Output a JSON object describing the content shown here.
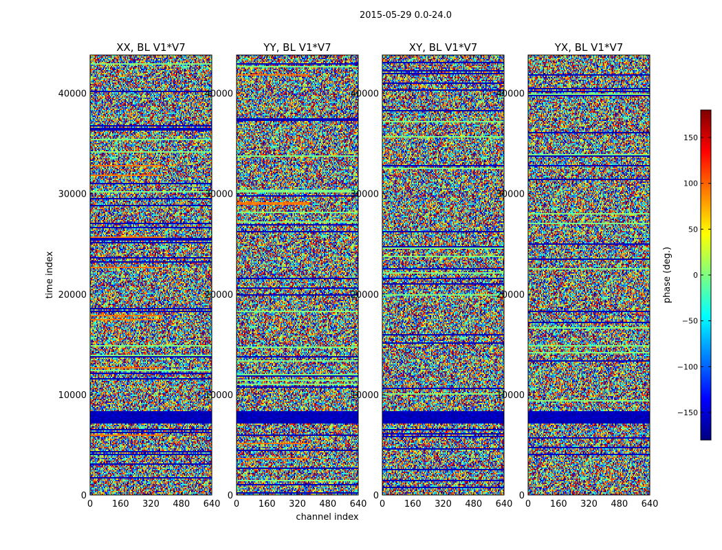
{
  "chart_data": {
    "type": "heatmap",
    "title": "2015-05-29 0.0-24.0",
    "xlabel": "channel index",
    "ylabel": "time index",
    "xlim": [
      0,
      640
    ],
    "ylim": [
      0,
      43800
    ],
    "xticks": [
      0,
      160,
      320,
      480,
      640
    ],
    "yticks": [
      0,
      10000,
      20000,
      30000,
      40000
    ],
    "panels": [
      {
        "title": "XX, BL V1*V7"
      },
      {
        "title": "YY, BL V1*V7"
      },
      {
        "title": "XY, BL V1*V7"
      },
      {
        "title": "YX, BL V1*V7"
      }
    ],
    "colorbar": {
      "label": "phase (deg.)",
      "range": [
        -180,
        180
      ],
      "ticks": [
        -150,
        -100,
        -50,
        0,
        50,
        100,
        150
      ],
      "tick_labels": [
        "−150",
        "−100",
        "−50",
        "0",
        "50",
        "100",
        "150"
      ],
      "colormap": "jet",
      "colors": [
        "#00007f",
        "#0000ff",
        "#007fff",
        "#00ffff",
        "#7fff7f",
        "#ffff00",
        "#ff7f00",
        "#ff0000",
        "#7f0000"
      ]
    },
    "grid": false
  }
}
